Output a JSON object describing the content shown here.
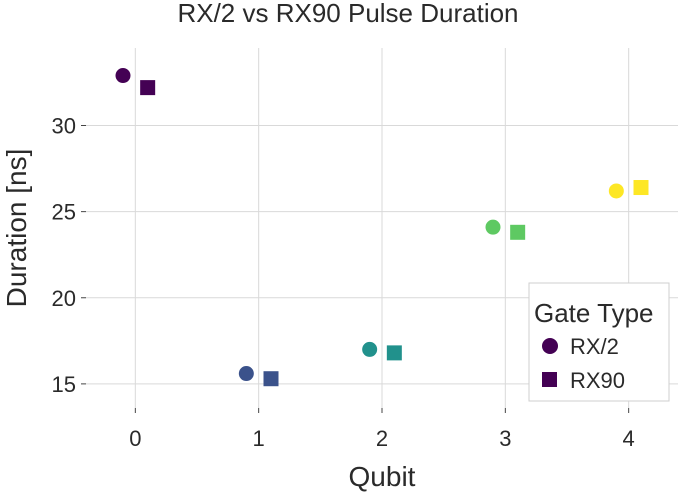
{
  "chart_data": {
    "type": "scatter",
    "title": "RX/2 vs RX90 Pulse Duration",
    "xlabel": "Qubit",
    "ylabel": "Duration [ns]",
    "xlim": [
      -0.4,
      4.4
    ],
    "ylim": [
      13.6,
      34.5
    ],
    "x_ticks": [
      0,
      1,
      2,
      3,
      4
    ],
    "y_ticks": [
      15,
      20,
      25,
      30
    ],
    "grid": true,
    "legend": {
      "title": "Gate Type",
      "position": "bottom-right",
      "entries": [
        {
          "label": "RX/2",
          "marker": "circle"
        },
        {
          "label": "RX90",
          "marker": "square"
        }
      ]
    },
    "qubit_colors": [
      "#440154",
      "#3b528b",
      "#21918c",
      "#5ec962",
      "#fde725"
    ],
    "series": [
      {
        "name": "RX/2",
        "marker": "circle",
        "x_offset": -0.1,
        "points": [
          {
            "qubit": 0,
            "duration": 32.9
          },
          {
            "qubit": 1,
            "duration": 15.6
          },
          {
            "qubit": 2,
            "duration": 17.0
          },
          {
            "qubit": 3,
            "duration": 24.1
          },
          {
            "qubit": 4,
            "duration": 26.2
          }
        ]
      },
      {
        "name": "RX90",
        "marker": "square",
        "x_offset": 0.1,
        "points": [
          {
            "qubit": 0,
            "duration": 32.2
          },
          {
            "qubit": 1,
            "duration": 15.3
          },
          {
            "qubit": 2,
            "duration": 16.8
          },
          {
            "qubit": 3,
            "duration": 23.8
          },
          {
            "qubit": 4,
            "duration": 26.4
          }
        ]
      }
    ]
  }
}
